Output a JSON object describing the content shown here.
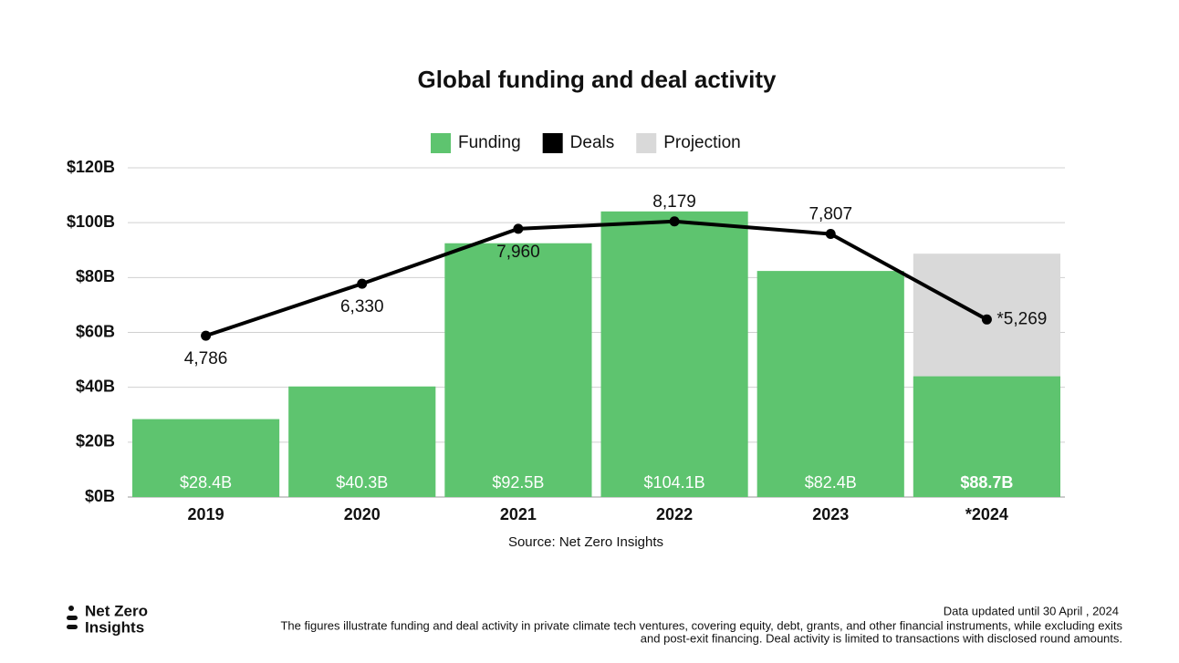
{
  "chart_data": {
    "type": "bar",
    "title": "Global funding and deal activity",
    "categories": [
      "2019",
      "2020",
      "2021",
      "2022",
      "2023",
      "*2024"
    ],
    "series": [
      {
        "name": "Funding",
        "color": "#5ec46f",
        "values": [
          28.4,
          40.3,
          92.5,
          104.1,
          82.4,
          44
        ],
        "value_labels": [
          "$28.4B",
          "$40.3B",
          "$92.5B",
          "$104.1B",
          "$82.4B",
          null
        ]
      },
      {
        "name": "Deals",
        "type": "line",
        "axis": "y2",
        "color": "#000000",
        "values": [
          4786,
          6330,
          7960,
          8179,
          7807,
          5269
        ],
        "value_labels": [
          "4,786",
          "6,330",
          "7,960",
          "8,179",
          "7,807",
          "*5,269"
        ]
      },
      {
        "name": "Projection",
        "color": "#d9d9d9",
        "values": [
          null,
          null,
          null,
          null,
          null,
          88.7
        ],
        "value_labels": [
          null,
          null,
          null,
          null,
          null,
          "$88.7B"
        ]
      }
    ],
    "ylim": [
      0,
      120
    ],
    "yticks": [
      {
        "value": 0,
        "label": "$0B"
      },
      {
        "value": 20,
        "label": "$20B"
      },
      {
        "value": 40,
        "label": "$40B"
      },
      {
        "value": 60,
        "label": "$60B"
      },
      {
        "value": 80,
        "label": "$80B"
      },
      {
        "value": 100,
        "label": "$100B"
      },
      {
        "value": 120,
        "label": "$120B"
      }
    ],
    "y2lim": [
      0,
      9770
    ],
    "grid": true,
    "legend": "top",
    "source": "Source: Net Zero Insights"
  },
  "footer": {
    "logo": [
      "Net Zero",
      "Insights"
    ],
    "updated": "Data updated until 30 April , 2024",
    "note": [
      "The figures illustrate funding and deal activity in private climate tech ventures, covering equity, debt, grants, and other financial instruments, while excluding exits",
      "and post-exit financing. Deal activity is limited to transactions with disclosed round amounts."
    ]
  }
}
